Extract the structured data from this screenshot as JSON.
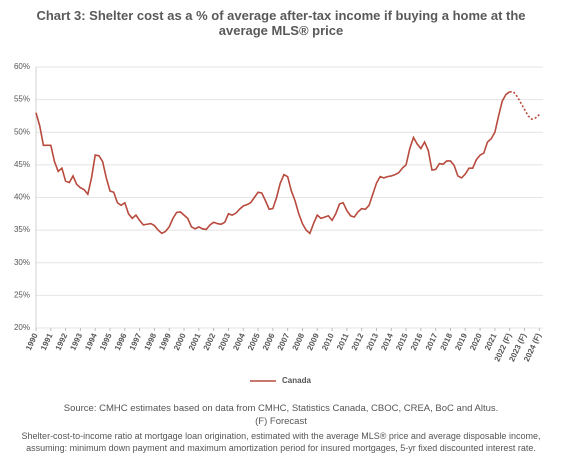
{
  "chart_data": {
    "type": "line",
    "title": "Chart 3: Shelter cost as a % of average after-tax income if buying a home at the average MLS® price",
    "source": "Source: CMHC estimates based on data from CMHC, Statistics Canada, CBOC, CREA, BoC and Altus.",
    "forecast_note": "(F) Forecast",
    "note": "Shelter-cost-to-income ratio at mortgage loan origination, estimated with the average MLS® price and average disposable income, assuming: minimum down payment and maximum amortization period for insured mortgages, 5-yr fixed discounted interest rate.",
    "legend": "bottom",
    "grid": true,
    "forecast_from": 2022,
    "xlim": [
      1990,
      2024.25
    ],
    "xticks": [
      1990,
      1991,
      1992,
      1993,
      1994,
      1995,
      1996,
      1997,
      1998,
      1999,
      2000,
      2001,
      2002,
      2003,
      2004,
      2005,
      2006,
      2007,
      2008,
      2009,
      2010,
      2011,
      2012,
      2013,
      2014,
      2015,
      2016,
      2017,
      2018,
      2019,
      2020,
      2021,
      {
        "value": 2022,
        "label": "2022 (F)"
      },
      {
        "value": 2023,
        "label": "2023 (F)"
      },
      {
        "value": 2024,
        "label": "2024 (F)"
      }
    ],
    "ylim": [
      20,
      60
    ],
    "yticks": [
      {
        "value": 20,
        "label": "20%"
      },
      {
        "value": 25,
        "label": "25%"
      },
      {
        "value": 30,
        "label": "30%"
      },
      {
        "value": 35,
        "label": "35%"
      },
      {
        "value": 40,
        "label": "40%"
      },
      {
        "value": 45,
        "label": "45%"
      },
      {
        "value": 50,
        "label": "50%"
      },
      {
        "value": 55,
        "label": "55%"
      },
      {
        "value": 60,
        "label": "60%"
      }
    ],
    "x": [
      1990,
      1990.25,
      1990.5,
      1990.75,
      1991,
      1991.25,
      1991.5,
      1991.75,
      1992,
      1992.25,
      1992.5,
      1992.75,
      1993,
      1993.25,
      1993.5,
      1993.75,
      1994,
      1994.25,
      1994.5,
      1994.75,
      1995,
      1995.25,
      1995.5,
      1995.75,
      1996,
      1996.25,
      1996.5,
      1996.75,
      1997,
      1997.25,
      1997.5,
      1997.75,
      1998,
      1998.25,
      1998.5,
      1998.75,
      1999,
      1999.25,
      1999.5,
      1999.75,
      2000,
      2000.25,
      2000.5,
      2000.75,
      2001,
      2001.25,
      2001.5,
      2001.75,
      2002,
      2002.25,
      2002.5,
      2002.75,
      2003,
      2003.25,
      2003.5,
      2003.75,
      2004,
      2004.25,
      2004.5,
      2004.75,
      2005,
      2005.25,
      2005.5,
      2005.75,
      2006,
      2006.25,
      2006.5,
      2006.75,
      2007,
      2007.25,
      2007.5,
      2007.75,
      2008,
      2008.25,
      2008.5,
      2008.75,
      2009,
      2009.25,
      2009.5,
      2009.75,
      2010,
      2010.25,
      2010.5,
      2010.75,
      2011,
      2011.25,
      2011.5,
      2011.75,
      2012,
      2012.25,
      2012.5,
      2012.75,
      2013,
      2013.25,
      2013.5,
      2013.75,
      2014,
      2014.25,
      2014.5,
      2014.75,
      2015,
      2015.25,
      2015.5,
      2015.75,
      2016,
      2016.25,
      2016.5,
      2016.75,
      2017,
      2017.25,
      2017.5,
      2017.75,
      2018,
      2018.25,
      2018.5,
      2018.75,
      2019,
      2019.25,
      2019.5,
      2019.75,
      2020,
      2020.25,
      2020.5,
      2020.75,
      2021,
      2021.25,
      2021.5,
      2021.75,
      2022,
      2022.25,
      2022.5,
      2022.75,
      2023,
      2023.25,
      2023.5,
      2023.75,
      2024
    ],
    "series": [
      {
        "name": "Canada",
        "color": "#b84a3e",
        "values": [
          53,
          51,
          48,
          48,
          48,
          45.5,
          44,
          44.5,
          42.5,
          42.3,
          43.3,
          42,
          41.5,
          41.2,
          40.5,
          43,
          46.5,
          46.4,
          45.5,
          43,
          41,
          40.8,
          39.2,
          38.8,
          39.2,
          37.5,
          36.8,
          37.3,
          36.5,
          35.8,
          35.9,
          36,
          35.7,
          35,
          34.5,
          34.8,
          35.5,
          36.8,
          37.7,
          37.8,
          37.3,
          36.8,
          35.5,
          35.2,
          35.5,
          35.2,
          35.1,
          35.8,
          36.2,
          36,
          35.9,
          36.2,
          37.5,
          37.3,
          37.6,
          38.2,
          38.7,
          38.9,
          39.2,
          40,
          40.8,
          40.7,
          39.5,
          38.2,
          38.3,
          40,
          42.2,
          43.5,
          43.2,
          41,
          39.5,
          37.5,
          36,
          35,
          34.5,
          36,
          37.3,
          36.8,
          37,
          37.2,
          36.5,
          37.5,
          39,
          39.2,
          38,
          37.2,
          37,
          37.8,
          38.3,
          38.2,
          38.8,
          40.5,
          42.2,
          43.2,
          43,
          43.2,
          43.3,
          43.5,
          43.8,
          44.5,
          45,
          47.5,
          49.2,
          48.2,
          47.5,
          48.5,
          47.2,
          44.2,
          44.3,
          45.2,
          45.1,
          45.6,
          45.6,
          44.9,
          43.3,
          43,
          43.6,
          44.5,
          44.5,
          45.8,
          46.5,
          46.8,
          48.5,
          49,
          50,
          52.5,
          54.8,
          55.8,
          56.2,
          56.2,
          55.5,
          54.5,
          53.5,
          52.5,
          52,
          52.2,
          52.7
        ]
      }
    ]
  }
}
